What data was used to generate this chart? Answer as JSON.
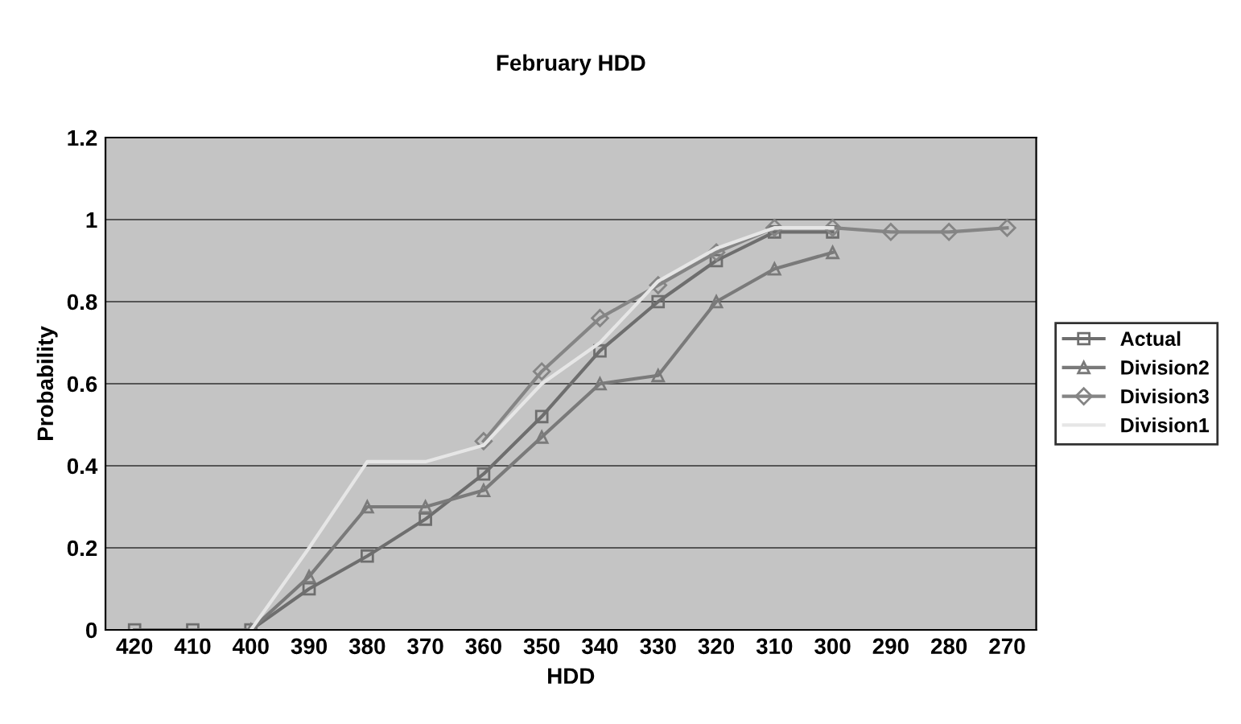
{
  "chart_data": {
    "type": "line",
    "title": "February HDD",
    "xlabel": "HDD",
    "ylabel": "Probability",
    "categories": [
      "420",
      "410",
      "400",
      "390",
      "380",
      "370",
      "360",
      "350",
      "340",
      "330",
      "320",
      "310",
      "300",
      "290",
      "280",
      "270"
    ],
    "series": [
      {
        "name": "Actual",
        "color": "#6e6e6e",
        "marker": "square",
        "values": [
          0,
          0,
          0,
          0.1,
          0.18,
          0.27,
          0.38,
          0.52,
          0.68,
          0.8,
          0.9,
          0.97,
          0.97,
          null,
          null,
          null
        ]
      },
      {
        "name": "Division2",
        "color": "#7a7a7a",
        "marker": "triangle",
        "values": [
          null,
          null,
          0,
          0.13,
          0.3,
          0.3,
          0.34,
          0.47,
          0.6,
          0.62,
          0.8,
          0.88,
          0.92,
          null,
          null,
          null
        ]
      },
      {
        "name": "Division3",
        "color": "#858585",
        "marker": "diamond",
        "values": [
          null,
          null,
          null,
          null,
          null,
          null,
          0.46,
          0.63,
          0.76,
          0.84,
          0.92,
          0.98,
          0.98,
          0.97,
          0.97,
          0.98
        ]
      },
      {
        "name": "Division1",
        "color": "#e6e6e6",
        "marker": "none",
        "values": [
          null,
          null,
          0,
          0.2,
          0.41,
          0.41,
          0.45,
          0.6,
          0.7,
          0.85,
          0.93,
          0.98,
          0.98,
          null,
          null,
          null
        ]
      }
    ],
    "ylim": [
      0,
      1.2
    ],
    "yticks": [
      0,
      0.2,
      0.4,
      0.6,
      0.8,
      1,
      1.2
    ],
    "grid": "y",
    "legend": "right"
  }
}
